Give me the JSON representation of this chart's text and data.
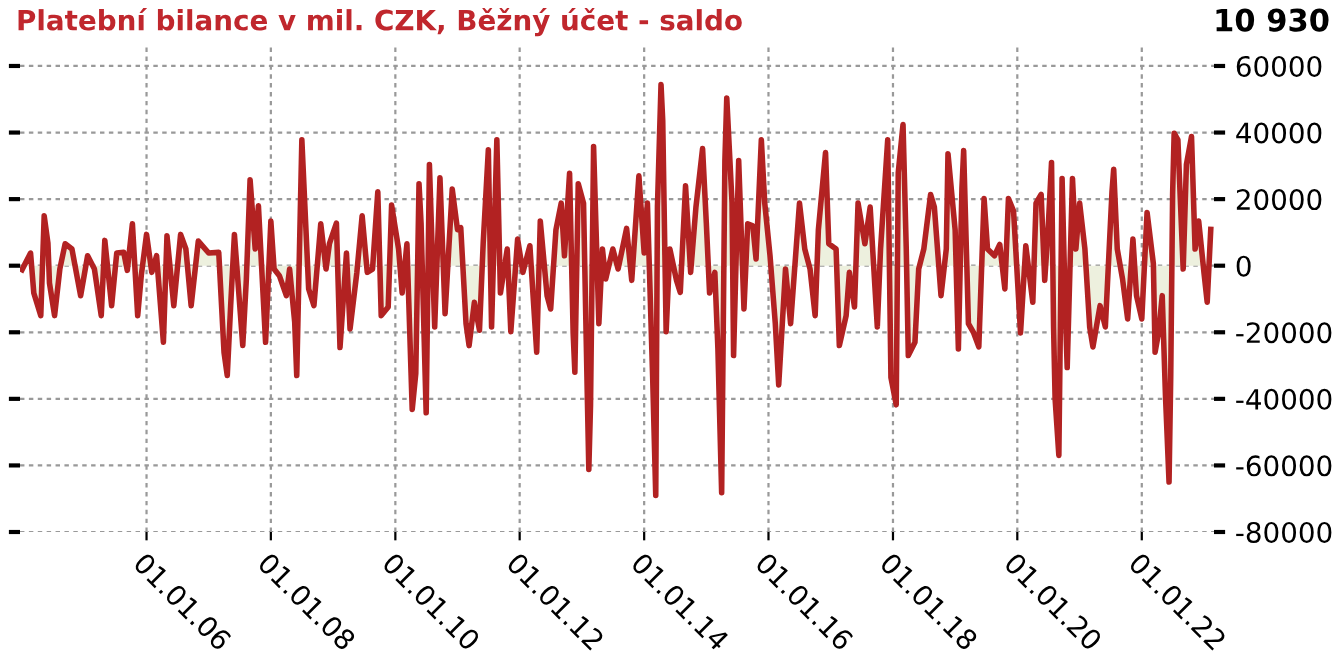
{
  "chart_data": {
    "type": "area",
    "title": "Platební bilance v mil. CZK, Běžný účet - saldo",
    "annotations": [
      "10 930"
    ],
    "xlim": [
      "2003-12-20",
      "2023-03-01"
    ],
    "ylim": [
      -80000,
      66000
    ],
    "xticks": [
      {
        "value": "2006-01-01",
        "label": "01.01.06"
      },
      {
        "value": "2008-01-01",
        "label": "01.01.08"
      },
      {
        "value": "2010-01-01",
        "label": "01.01.10"
      },
      {
        "value": "2012-01-01",
        "label": "01.01.12"
      },
      {
        "value": "2014-01-01",
        "label": "01.01.14"
      },
      {
        "value": "2016-01-01",
        "label": "01.01.16"
      },
      {
        "value": "2018-01-01",
        "label": "01.01.18"
      },
      {
        "value": "2020-01-01",
        "label": "01.01.20"
      },
      {
        "value": "2022-01-01",
        "label": "01.01.22"
      }
    ],
    "yticks": [
      -80000,
      -60000,
      -40000,
      -20000,
      0,
      20000,
      40000,
      60000
    ],
    "grid": true,
    "line_style": "solid",
    "marker": "none",
    "series": [
      {
        "color": "#b22222",
        "x": [
          "2004-01-01",
          "2004-02-20",
          "2004-03-10",
          "2004-04-20",
          "2004-05-10",
          "2004-06-01",
          "2004-06-10",
          "2004-07-10",
          "2004-08-10",
          "2004-09-10",
          "2004-10-20",
          "2004-12-10",
          "2005-01-20",
          "2005-03-01",
          "2005-04-10",
          "2005-05-01",
          "2005-06-10",
          "2005-07-10",
          "2005-08-20",
          "2005-09-10",
          "2005-10-10",
          "2005-11-10",
          "2005-12-01",
          "2006-01-01",
          "2006-02-01",
          "2006-03-01",
          "2006-04-10",
          "2006-05-01",
          "2006-06-10",
          "2006-07-20",
          "2006-08-20",
          "2006-09-20",
          "2006-11-01",
          "2007-01-01",
          "2007-03-01",
          "2007-04-01",
          "2007-04-20",
          "2007-05-10",
          "2007-06-01",
          "2007-07-20",
          "2007-08-10",
          "2007-09-01",
          "2007-10-01",
          "2007-10-20",
          "2007-12-01",
          "2008-01-01",
          "2008-01-20",
          "2008-02-20",
          "2008-04-01",
          "2008-04-20",
          "2008-05-20",
          "2008-06-01",
          "2008-07-01",
          "2008-08-10",
          "2008-09-10",
          "2008-10-20",
          "2008-11-20",
          "2008-12-10",
          "2009-01-20",
          "2009-02-10",
          "2009-03-20",
          "2009-04-10",
          "2009-05-20",
          "2009-06-20",
          "2009-07-20",
          "2009-08-20",
          "2009-09-20",
          "2009-10-10",
          "2009-11-20",
          "2009-12-10",
          "2010-01-20",
          "2010-02-10",
          "2010-03-10",
          "2010-04-10",
          "2010-05-01",
          "2010-05-20",
          "2010-06-01",
          "2010-07-01",
          "2010-07-20",
          "2010-08-20",
          "2010-09-20",
          "2010-10-20",
          "2010-12-01",
          "2011-01-01",
          "2011-01-20",
          "2011-02-20",
          "2011-03-10",
          "2011-04-10",
          "2011-05-10",
          "2011-06-01",
          "2011-07-01",
          "2011-07-20",
          "2011-08-20",
          "2011-09-10",
          "2011-10-20",
          "2011-11-10",
          "2011-12-20",
          "2012-01-20",
          "2012-03-01",
          "2012-04-10",
          "2012-05-01",
          "2012-06-10",
          "2012-07-01",
          "2012-08-01",
          "2012-09-01",
          "2012-09-20",
          "2012-10-20",
          "2012-11-10",
          "2012-11-20",
          "2012-12-10",
          "2013-01-10",
          "2013-02-01",
          "2013-02-10",
          "2013-02-20",
          "2013-03-10",
          "2013-04-10",
          "2013-05-01",
          "2013-05-20",
          "2013-07-01",
          "2013-08-01",
          "2013-09-20",
          "2013-10-20",
          "2013-12-01",
          "2014-01-01",
          "2014-01-20",
          "2014-02-20",
          "2014-03-10",
          "2014-03-20",
          "2014-04-10",
          "2014-04-20",
          "2014-05-10",
          "2014-06-01",
          "2014-07-10",
          "2014-08-01",
          "2014-09-01",
          "2014-10-01",
          "2014-11-01",
          "2014-12-10",
          "2015-01-01",
          "2015-01-20",
          "2015-02-20",
          "2015-03-10",
          "2015-04-01",
          "2015-04-20",
          "2015-05-01",
          "2015-06-01",
          "2015-06-10",
          "2015-07-10",
          "2015-08-10",
          "2015-09-01",
          "2015-10-01",
          "2015-10-20",
          "2015-11-20",
          "2015-12-10",
          "2016-01-10",
          "2016-02-10",
          "2016-03-01",
          "2016-04-10",
          "2016-05-10",
          "2016-07-01",
          "2016-08-01",
          "2016-09-01",
          "2016-10-01",
          "2016-10-20",
          "2016-12-01",
          "2016-12-20",
          "2017-02-01",
          "2017-02-20",
          "2017-04-01",
          "2017-04-20",
          "2017-05-20",
          "2017-06-10",
          "2017-07-20",
          "2017-08-20",
          "2017-10-01",
          "2017-10-20",
          "2017-12-01",
          "2017-12-20",
          "2018-01-20",
          "2018-02-01",
          "2018-03-01",
          "2018-03-20",
          "2018-04-01",
          "2018-05-10",
          "2018-06-01",
          "2018-07-01",
          "2018-08-10",
          "2018-09-01",
          "2018-10-10",
          "2018-11-10",
          "2018-11-20",
          "2019-01-01",
          "2019-01-20",
          "2019-02-10",
          "2019-02-20",
          "2019-03-20",
          "2019-04-20",
          "2019-05-20",
          "2019-06-20",
          "2019-07-10",
          "2019-08-20",
          "2019-09-20",
          "2019-10-20",
          "2019-11-10",
          "2019-12-10",
          "2020-01-20",
          "2020-02-20",
          "2020-04-01",
          "2020-04-20",
          "2020-05-20",
          "2020-06-10",
          "2020-07-01",
          "2020-07-20",
          "2020-08-01",
          "2020-08-10",
          "2020-09-01",
          "2020-09-20",
          "2020-10-10",
          "2020-10-20",
          "2020-11-20",
          "2020-12-10",
          "2021-01-01",
          "2021-02-01",
          "2021-03-01",
          "2021-03-20",
          "2021-05-01",
          "2021-06-01",
          "2021-07-10",
          "2021-07-20",
          "2021-08-10",
          "2021-09-10",
          "2021-10-10",
          "2021-11-10",
          "2021-12-01",
          "2022-01-01",
          "2022-02-01",
          "2022-03-10",
          "2022-03-20",
          "2022-04-10",
          "2022-05-01",
          "2022-05-20",
          "2022-06-10",
          "2022-06-20",
          "2022-07-01",
          "2022-07-10",
          "2022-08-01",
          "2022-09-01",
          "2022-09-20",
          "2022-10-20",
          "2022-11-10",
          "2022-12-01",
          "2023-01-01",
          "2023-01-20",
          "2023-02-10"
        ],
        "values": [
          -1200,
          3800,
          -8200,
          -15000,
          15000,
          6800,
          -5200,
          -15000,
          -1000,
          6600,
          5000,
          -9000,
          3000,
          -1000,
          -15000,
          7600,
          -12000,
          3800,
          4000,
          -1400,
          12600,
          -15000,
          -3000,
          9400,
          -2000,
          3000,
          -23000,
          9000,
          -12000,
          9400,
          5000,
          -12000,
          7400,
          3800,
          4000,
          -26000,
          -33000,
          -12000,
          9400,
          -24000,
          -4200,
          25800,
          5000,
          18000,
          -23000,
          13400,
          -1000,
          -3000,
          -9000,
          -1000,
          -17000,
          -33000,
          37800,
          -7000,
          -12000,
          12600,
          -1000,
          6600,
          12800,
          -24600,
          3800,
          -19000,
          -2000,
          15000,
          -2000,
          -1000,
          22200,
          -15000,
          -12400,
          18200,
          5000,
          -8200,
          6600,
          -43200,
          -32400,
          24600,
          12800,
          -44200,
          30400,
          -18400,
          26400,
          -14400,
          23000,
          10800,
          11400,
          -17400,
          -24000,
          -11000,
          -19400,
          7000,
          34800,
          -18400,
          37800,
          -8200,
          5000,
          -19800,
          8000,
          -2000,
          6000,
          -26000,
          13400,
          -9000,
          -13000,
          10800,
          18800,
          3000,
          27800,
          -20200,
          -32000,
          24600,
          18800,
          -38600,
          -61200,
          -42000,
          35800,
          -17400,
          5000,
          -4000,
          5000,
          -1000,
          11200,
          -4400,
          27000,
          3800,
          18800,
          -33600,
          -69000,
          17800,
          54400,
          43600,
          -19800,
          5000,
          -4400,
          -8000,
          24000,
          -2000,
          17600,
          35200,
          12800,
          -8200,
          -2000,
          -25000,
          -68200,
          31600,
          50400,
          18800,
          -27000,
          31600,
          -13000,
          12600,
          12000,
          2000,
          37800,
          18800,
          3000,
          -17400,
          -35800,
          -1000,
          -17400,
          18800,
          5000,
          -1000,
          -15000,
          10800,
          34000,
          6600,
          5000,
          -24000,
          -15000,
          -2000,
          -12400,
          18800,
          6600,
          17600,
          -18400,
          5000,
          37800,
          -33600,
          -41800,
          28000,
          42400,
          5000,
          -27000,
          -23000,
          -1000,
          5000,
          21400,
          17600,
          -9000,
          5000,
          33600,
          10800,
          -25000,
          23400,
          34600,
          -17400,
          -20200,
          -24400,
          20200,
          5000,
          3000,
          6400,
          -7000,
          20200,
          16400,
          -20200,
          6000,
          -11000,
          18800,
          21400,
          -4400,
          12000,
          31000,
          -18400,
          -40000,
          -57000,
          26200,
          -15000,
          -30600,
          26200,
          5000,
          18800,
          5000,
          -18400,
          -24400,
          -12000,
          -18400,
          22200,
          29000,
          5000,
          -4000,
          -16000,
          8000,
          -9000,
          -16000,
          16000,
          600,
          -26000,
          -20000,
          -9000,
          -39000,
          -65000,
          -33000,
          21400,
          39800,
          37800,
          -1000,
          30400,
          38800,
          5000,
          13400,
          -2000,
          -11000,
          10930
        ]
      }
    ]
  }
}
